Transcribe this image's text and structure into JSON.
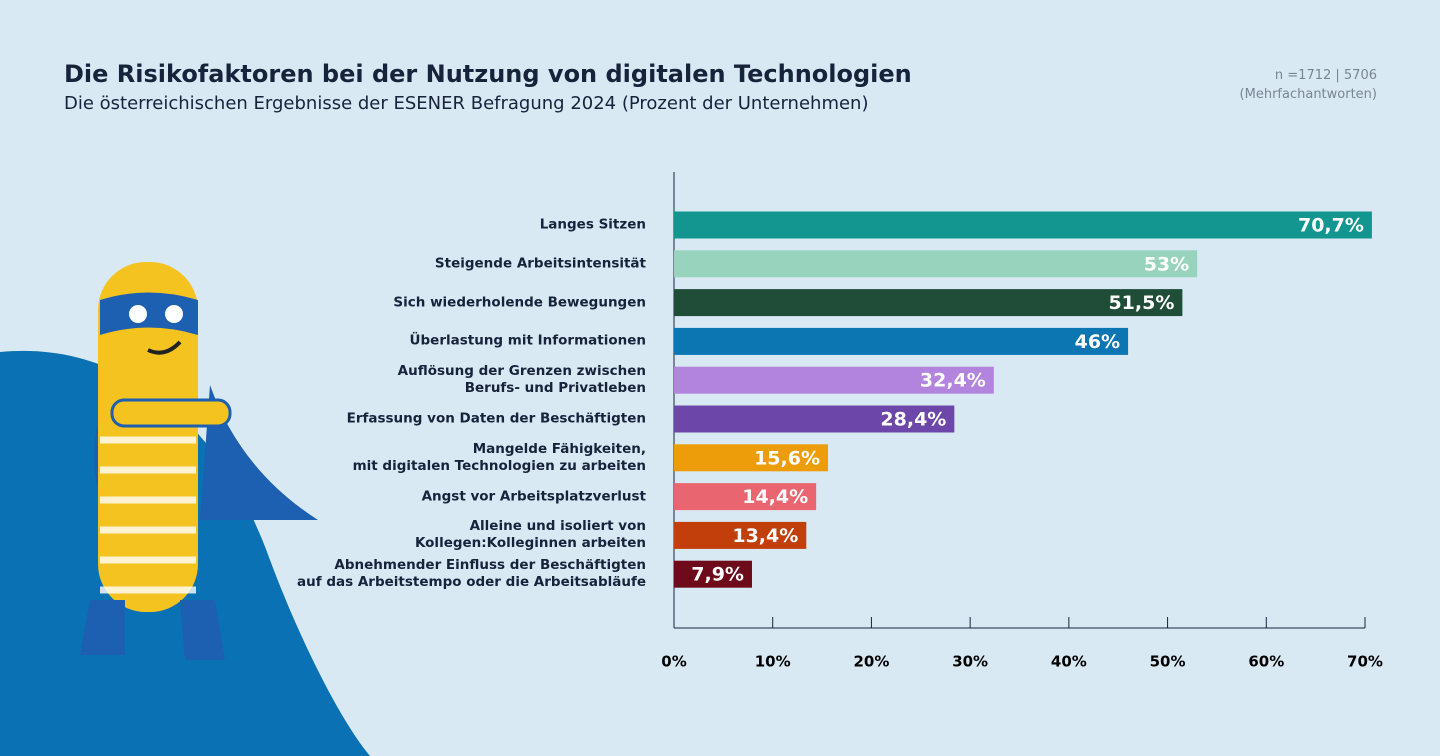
{
  "chart_data": {
    "type": "bar",
    "orientation": "horizontal",
    "title": "Die Risikofaktoren bei der Nutzung von digitalen Technologien",
    "subtitle": "Die österreichischen Ergebnisse der ESENER Befragung 2024 (Prozent der Unternehmen)",
    "annotations": [
      "n =1712 | 5706",
      "(Mehrfachantworten)"
    ],
    "categories": [
      "Langes Sitzen",
      "Steigende Arbeitsintensität",
      "Sich wiederholende Bewegungen",
      "Überlastung mit Informationen",
      "Auflösung der Grenzen zwischen\nBerufs- und Privatleben",
      "Erfassung von Daten der Beschäftigten",
      "Mangelde Fähigkeiten,\nmit digitalen Technologien zu arbeiten",
      "Angst vor Arbeitsplatzverlust",
      "Alleine und isoliert von\nKollegen:Kolleginnen arbeiten",
      "Abnehmender Einfluss der Beschäftigten\nauf das Arbeitstempo oder die Arbeitsabläufe"
    ],
    "values": [
      70.7,
      53,
      51.5,
      46,
      32.4,
      28.4,
      15.6,
      14.4,
      13.4,
      7.9
    ],
    "value_labels": [
      "70,7%",
      "53%",
      "51,5%",
      "46%",
      "32,4%",
      "28,4%",
      "15,6%",
      "14,4%",
      "13,4%",
      "7,9%"
    ],
    "colors": [
      "#12968f",
      "#97d3bd",
      "#1f4d38",
      "#0c76b3",
      "#b284de",
      "#6c46a8",
      "#ee9d0a",
      "#e96570",
      "#c23f0c",
      "#6e0b1a"
    ],
    "value_label_colors": [
      "#ffffff",
      "#ffffff",
      "#ffffff",
      "#ffffff",
      "#ffffff",
      "#ffffff",
      "#ffffff",
      "#ffffff",
      "#ffffff",
      "#ffffff"
    ],
    "xlim": [
      0,
      70
    ],
    "xticks": [
      {
        "value": 0,
        "label": "0%"
      },
      {
        "value": 10,
        "label": "10%"
      },
      {
        "value": 20,
        "label": "20%"
      },
      {
        "value": 30,
        "label": "30%"
      },
      {
        "value": 40,
        "label": "40%"
      },
      {
        "value": 50,
        "label": "50%"
      },
      {
        "value": 60,
        "label": "60%"
      },
      {
        "value": 70,
        "label": "70%"
      }
    ]
  }
}
